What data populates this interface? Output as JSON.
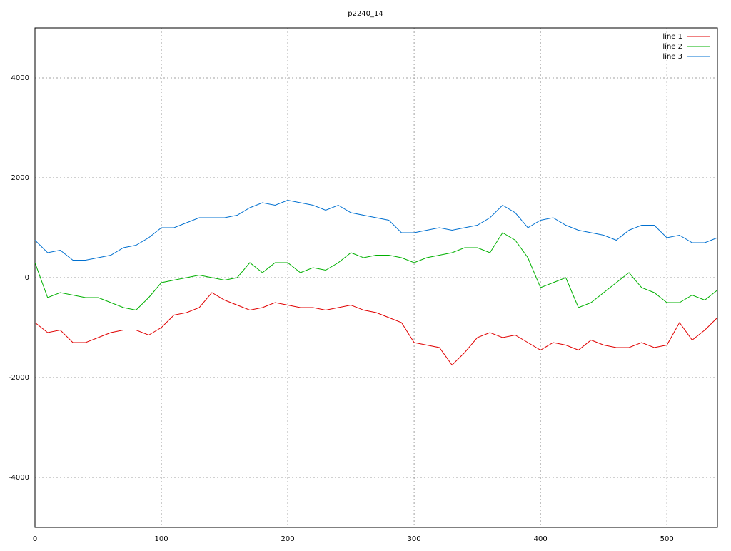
{
  "chart_data": {
    "type": "line",
    "title": "p2240_14",
    "x": [
      0,
      10,
      20,
      30,
      40,
      50,
      60,
      70,
      80,
      90,
      100,
      110,
      120,
      130,
      140,
      150,
      160,
      170,
      180,
      190,
      200,
      210,
      220,
      230,
      240,
      250,
      260,
      270,
      280,
      290,
      300,
      310,
      320,
      330,
      340,
      350,
      360,
      370,
      380,
      390,
      400,
      410,
      420,
      430,
      440,
      450,
      460,
      470,
      480,
      490,
      500,
      510,
      520,
      530,
      540
    ],
    "series": [
      {
        "name": "line 1",
        "color": "#e00000",
        "values": [
          -900,
          -1100,
          -1050,
          -1300,
          -1300,
          -1200,
          -1100,
          -1050,
          -1050,
          -1150,
          -1000,
          -750,
          -700,
          -600,
          -300,
          -450,
          -550,
          -650,
          -600,
          -500,
          -550,
          -600,
          -600,
          -650,
          -600,
          -550,
          -650,
          -700,
          -800,
          -900,
          -1300,
          -1350,
          -1400,
          -1750,
          -1500,
          -1200,
          -1100,
          -1200,
          -1150,
          -1300,
          -1450,
          -1300,
          -1350,
          -1450,
          -1250,
          -1350,
          -1400,
          -1400,
          -1300,
          -1400,
          -1350,
          -900,
          -1250,
          -1050,
          -800
        ]
      },
      {
        "name": "line 2",
        "color": "#00b000",
        "values": [
          300,
          -400,
          -300,
          -350,
          -400,
          -400,
          -500,
          -600,
          -650,
          -400,
          -100,
          -50,
          0,
          50,
          0,
          -50,
          0,
          300,
          100,
          300,
          300,
          100,
          200,
          150,
          300,
          500,
          400,
          450,
          450,
          400,
          300,
          400,
          450,
          500,
          600,
          600,
          500,
          900,
          750,
          400,
          -200,
          -100,
          0,
          -600,
          -500,
          -300,
          -100,
          100,
          -200,
          -300,
          -500,
          -500,
          -350,
          -450,
          -250
        ]
      },
      {
        "name": "line 3",
        "color": "#0070d0",
        "values": [
          750,
          500,
          550,
          350,
          350,
          400,
          450,
          600,
          650,
          800,
          1000,
          1000,
          1100,
          1200,
          1200,
          1200,
          1250,
          1400,
          1500,
          1450,
          1550,
          1500,
          1450,
          1350,
          1450,
          1300,
          1250,
          1200,
          1150,
          900,
          900,
          950,
          1000,
          950,
          1000,
          1050,
          1200,
          1450,
          1300,
          1000,
          1150,
          1200,
          1050,
          950,
          900,
          850,
          750,
          950,
          1050,
          1050,
          800,
          850,
          700,
          700,
          800
        ]
      }
    ],
    "xlim": [
      0,
      540
    ],
    "ylim": [
      -5000,
      5000
    ],
    "xticks": [
      0,
      100,
      200,
      300,
      400,
      500
    ],
    "yticks": [
      -4000,
      -2000,
      0,
      2000,
      4000
    ],
    "grid": true,
    "legend": "top-right"
  }
}
